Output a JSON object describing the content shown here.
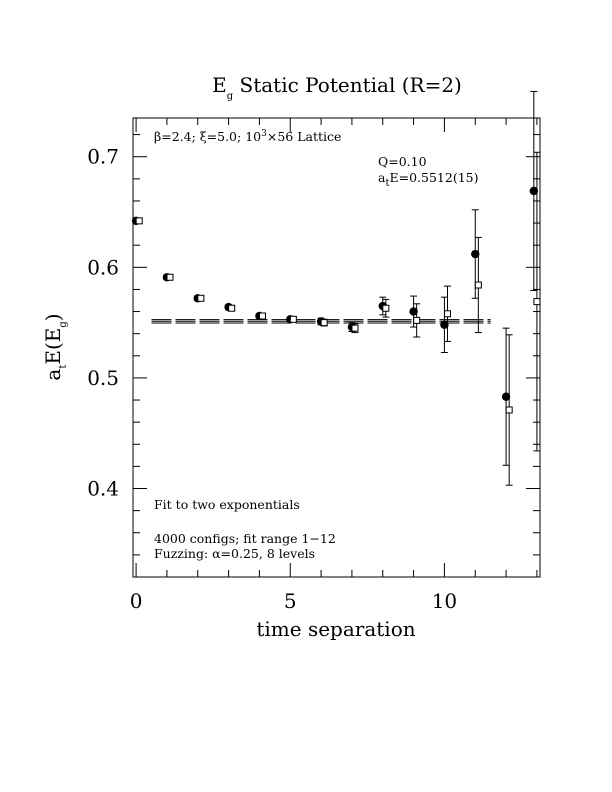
{
  "chart_data": {
    "type": "scatter",
    "title": {
      "main": "E",
      "sub": "g",
      "rest": " Static Potential (R=2)"
    },
    "xlabel": "time separation",
    "ylabel": {
      "a": "a",
      "a_sub": "t",
      "mid": "E(E",
      "mid_sub": "g",
      "end": ")"
    },
    "xlim": [
      -0.1,
      13.1
    ],
    "ylim": [
      0.32,
      0.735
    ],
    "x_ticks": [
      0,
      5,
      10
    ],
    "x_tick_labels": [
      "0",
      "5",
      "10"
    ],
    "y_ticks": [
      0.4,
      0.5,
      0.6,
      0.7
    ],
    "y_tick_labels": [
      "0.4",
      "0.5",
      "0.6",
      "0.7"
    ],
    "annotations": {
      "lattice": {
        "beta": "β=2.4; ",
        "xi": "ξ=5.0; ",
        "size": "10",
        "size_sup": "3",
        "rest": "×56 Lattice"
      },
      "q": "Q=0.10",
      "energy": {
        "a": "a",
        "sub": "t",
        "rest": "E=0.5512(15)"
      },
      "fit_type": "Fit to two exponentials",
      "configs": "4000 configs; fit range 1−12",
      "fuzzing": "Fuzzing: α=0.25, 8 levels"
    },
    "fit": {
      "value": 0.5512,
      "error": 0.0015,
      "x_range": [
        0.5,
        11.5
      ]
    },
    "series": [
      {
        "marker": "filled-circle",
        "points": [
          {
            "x": 0,
            "y": 0.642,
            "err": 0.002
          },
          {
            "x": 1,
            "y": 0.591,
            "err": 0.002
          },
          {
            "x": 2,
            "y": 0.572,
            "err": 0.002
          },
          {
            "x": 3,
            "y": 0.564,
            "err": 0.002
          },
          {
            "x": 4,
            "y": 0.556,
            "err": 0.002
          },
          {
            "x": 5,
            "y": 0.553,
            "err": 0.002
          },
          {
            "x": 6,
            "y": 0.551,
            "err": 0.003
          },
          {
            "x": 7,
            "y": 0.546,
            "err": 0.004
          },
          {
            "x": 8,
            "y": 0.565,
            "err": 0.008
          },
          {
            "x": 9,
            "y": 0.56,
            "err": 0.014
          },
          {
            "x": 10,
            "y": 0.548,
            "err": 0.025
          },
          {
            "x": 11,
            "y": 0.612,
            "err": 0.04
          },
          {
            "x": 12,
            "y": 0.483,
            "err": 0.062
          },
          {
            "x": 12.9,
            "y": 0.669,
            "err": 0.09
          }
        ]
      },
      {
        "marker": "open-square",
        "points": [
          {
            "x": 0.1,
            "y": 0.642,
            "err": 0.002
          },
          {
            "x": 1.1,
            "y": 0.591,
            "err": 0.002
          },
          {
            "x": 2.1,
            "y": 0.572,
            "err": 0.002
          },
          {
            "x": 3.1,
            "y": 0.563,
            "err": 0.002
          },
          {
            "x": 4.1,
            "y": 0.556,
            "err": 0.002
          },
          {
            "x": 5.1,
            "y": 0.553,
            "err": 0.002
          },
          {
            "x": 6.1,
            "y": 0.55,
            "err": 0.003
          },
          {
            "x": 7.1,
            "y": 0.545,
            "err": 0.004
          },
          {
            "x": 8.1,
            "y": 0.563,
            "err": 0.008
          },
          {
            "x": 9.1,
            "y": 0.552,
            "err": 0.015
          },
          {
            "x": 10.1,
            "y": 0.558,
            "err": 0.025
          },
          {
            "x": 11.1,
            "y": 0.584,
            "err": 0.043
          },
          {
            "x": 12.1,
            "y": 0.471,
            "err": 0.068
          },
          {
            "x": 13.0,
            "y": 0.569,
            "err": 0.135
          }
        ]
      }
    ]
  }
}
